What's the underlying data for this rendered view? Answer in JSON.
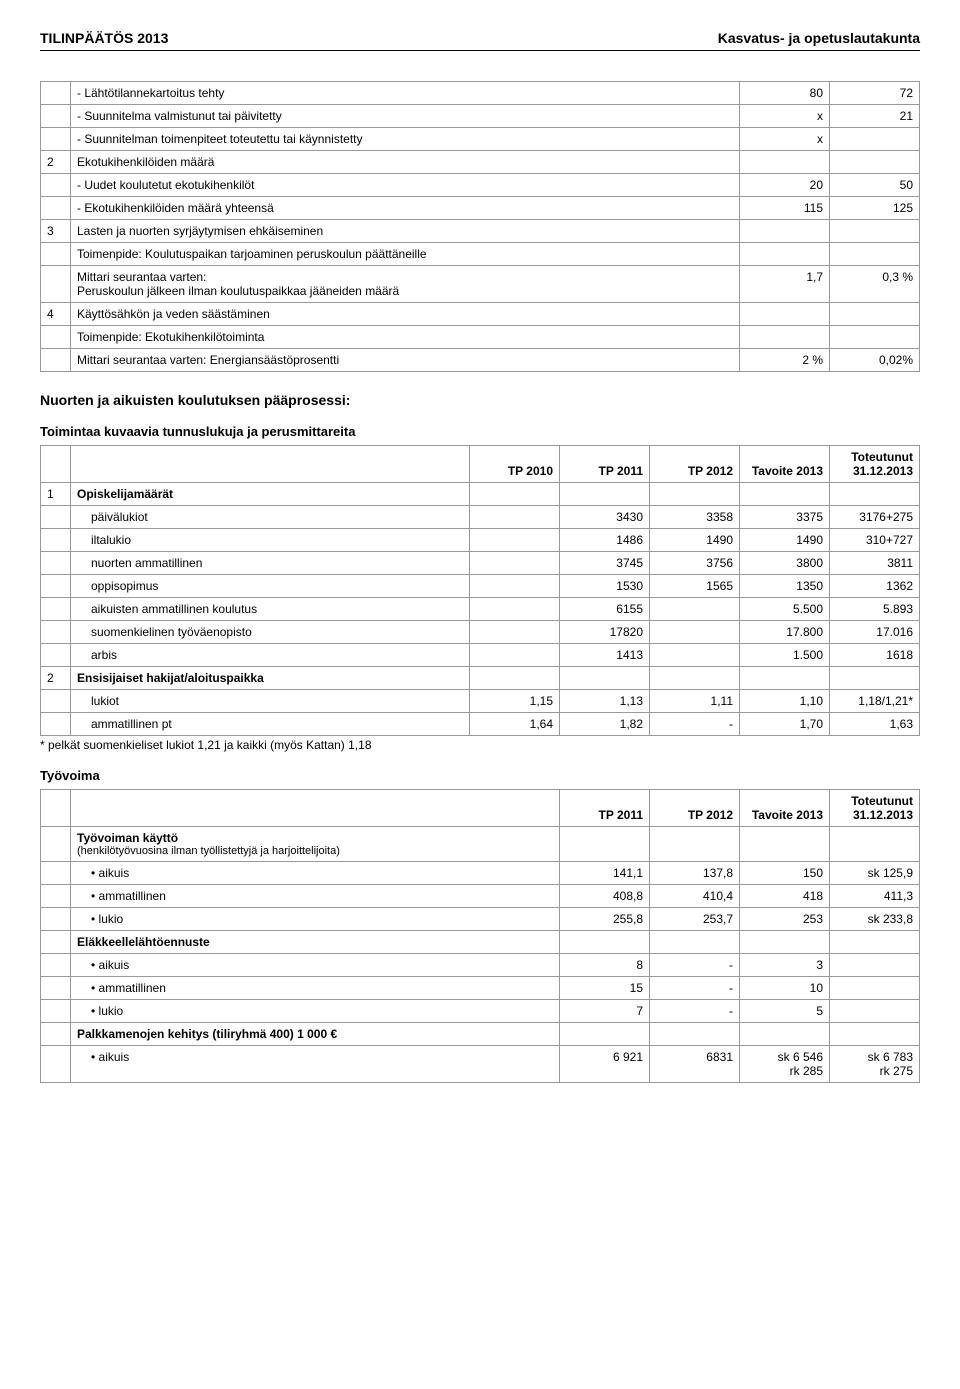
{
  "header": {
    "left": "TILINPÄÄTÖS 2013",
    "right": "Kasvatus- ja opetuslautakunta"
  },
  "table1": {
    "rows": [
      {
        "idx": "",
        "desc": "-   Lähtötilannekartoitus tehty",
        "v1": "80",
        "v2": "72"
      },
      {
        "idx": "",
        "desc": "-   Suunnitelma valmistunut tai päivitetty",
        "v1": "x",
        "v2": "21"
      },
      {
        "idx": "",
        "desc": "-   Suunnitelman toimenpiteet toteutettu tai käynnistetty",
        "v1": "x",
        "v2": ""
      },
      {
        "idx": "2",
        "desc": "Ekotukihenkilöiden määrä",
        "v1": "",
        "v2": ""
      },
      {
        "idx": "",
        "desc": "-   Uudet koulutetut ekotukihenkilöt",
        "v1": "20",
        "v2": "50"
      },
      {
        "idx": "",
        "desc": "-   Ekotukihenkilöiden määrä yhteensä",
        "v1": "115",
        "v2": "125"
      },
      {
        "idx": "3",
        "desc": "Lasten ja nuorten syrjäytymisen ehkäiseminen",
        "v1": "",
        "v2": ""
      },
      {
        "idx": "",
        "desc": "Toimenpide: Koulutuspaikan tarjoaminen peruskoulun päättäneille",
        "v1": "",
        "v2": ""
      },
      {
        "idx": "",
        "desc": "Mittari seurantaa varten:\nPeruskoulun jälkeen ilman koulutuspaikkaa jääneiden määrä",
        "v1": "1,7",
        "v2": "0,3 %"
      },
      {
        "idx": "4",
        "desc": "Käyttösähkön ja veden säästäminen",
        "v1": "",
        "v2": ""
      },
      {
        "idx": "",
        "desc": "Toimenpide: Ekotukihenkilötoiminta",
        "v1": "",
        "v2": ""
      },
      {
        "idx": "",
        "desc": "Mittari seurantaa varten: Energiansäästöprosentti",
        "v1": "2 %",
        "v2": "0,02%"
      }
    ]
  },
  "section2": {
    "title": "Nuorten ja aikuisten koulutuksen pääprosessi:",
    "subtitle": "Toimintaa kuvaavia tunnuslukuja ja perusmittareita",
    "head": [
      "",
      "",
      "TP 2010",
      "TP 2011",
      "TP 2012",
      "Tavoite 2013",
      "Toteutunut 31.12.2013"
    ],
    "rows": [
      {
        "idx": "1",
        "desc": "Opiskelijamäärät",
        "bold": true,
        "c": [
          "",
          "",
          "",
          "",
          ""
        ]
      },
      {
        "idx": "",
        "desc": "päivälukiot",
        "c": [
          "",
          "3430",
          "3358",
          "3375",
          "3176+275"
        ]
      },
      {
        "idx": "",
        "desc": "iltalukio",
        "c": [
          "",
          "1486",
          "1490",
          "1490",
          "310+727"
        ]
      },
      {
        "idx": "",
        "desc": "nuorten ammatillinen",
        "c": [
          "",
          "3745",
          "3756",
          "3800",
          "3811"
        ]
      },
      {
        "idx": "",
        "desc": "oppisopimus",
        "c": [
          "",
          "1530",
          "1565",
          "1350",
          "1362"
        ]
      },
      {
        "idx": "",
        "desc": "aikuisten ammatillinen koulutus",
        "c": [
          "",
          "6155",
          "",
          "5.500",
          "5.893"
        ]
      },
      {
        "idx": "",
        "desc": "suomenkielinen työväenopisto",
        "c": [
          "",
          "17820",
          "",
          "17.800",
          "17.016"
        ]
      },
      {
        "idx": "",
        "desc": "arbis",
        "c": [
          "",
          "1413",
          "",
          "1.500",
          "1618"
        ]
      },
      {
        "idx": "2",
        "desc": "Ensisijaiset hakijat/aloituspaikka",
        "bold": true,
        "c": [
          "",
          "",
          "",
          "",
          ""
        ]
      },
      {
        "idx": "",
        "desc": "lukiot",
        "c": [
          "1,15",
          "1,13",
          "1,11",
          "1,10",
          "1,18/1,21*"
        ]
      },
      {
        "idx": "",
        "desc": "ammatillinen pt",
        "c": [
          "1,64",
          "1,82",
          "-",
          "1,70",
          "1,63"
        ]
      }
    ],
    "footnote": "* pelkät suomenkieliset lukiot 1,21 ja kaikki (myös Kattan) 1,18"
  },
  "section3": {
    "title": "Työvoima",
    "head": [
      "",
      "",
      "TP 2011",
      "TP 2012",
      "Tavoite 2013",
      "Toteutunut 31.12.2013"
    ],
    "rows": [
      {
        "idx": "",
        "desc": "Työvoiman käyttö",
        "bold": true,
        "small": "(henkilötyövuosina ilman työllistettyjä ja harjoittelijoita)",
        "c": [
          "",
          "",
          "",
          ""
        ]
      },
      {
        "idx": "",
        "desc": "•    aikuis",
        "c": [
          "141,1",
          "137,8",
          "150",
          "sk 125,9"
        ]
      },
      {
        "idx": "",
        "desc": "•    ammatillinen",
        "c": [
          "408,8",
          "410,4",
          "418",
          "411,3"
        ]
      },
      {
        "idx": "",
        "desc": "•    lukio",
        "c": [
          "255,8",
          "253,7",
          "253",
          "sk 233,8"
        ]
      },
      {
        "idx": "",
        "desc": "Eläkkeellelähtöennuste",
        "bold": true,
        "c": [
          "",
          "",
          "",
          ""
        ]
      },
      {
        "idx": "",
        "desc": "•    aikuis",
        "c": [
          "8",
          "-",
          "3",
          ""
        ]
      },
      {
        "idx": "",
        "desc": "•    ammatillinen",
        "c": [
          "15",
          "-",
          "10",
          ""
        ]
      },
      {
        "idx": "",
        "desc": "•    lukio",
        "c": [
          "7",
          "-",
          "5",
          ""
        ]
      },
      {
        "idx": "",
        "desc": "Palkkamenojen kehitys (tiliryhmä 400) 1 000 €",
        "bold": true,
        "c": [
          "",
          "",
          "",
          ""
        ]
      },
      {
        "idx": "",
        "desc": "•    aikuis",
        "c": [
          "6 921",
          "6831",
          "sk 6 546\nrk 285",
          "sk 6 783\nrk 275"
        ]
      }
    ]
  }
}
